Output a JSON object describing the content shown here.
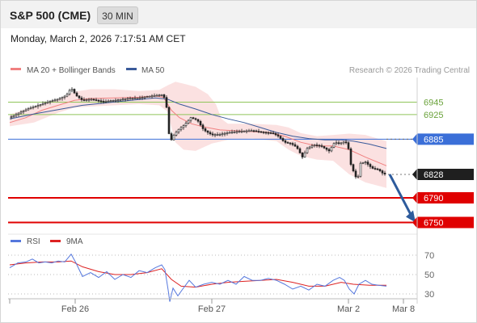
{
  "header": {
    "title": "S&P 500 (CME)",
    "interval": "30 MIN"
  },
  "datetime": "Monday, March 2, 2026 7:17:51 AM CET",
  "copyright": "Research © 2026 Trading Central",
  "colors": {
    "ma20": "#f08080",
    "ma50": "#3a5a9a",
    "bollinger": "#fadcdc",
    "candle": "#222222",
    "green_level": "#8fc55a",
    "blue_level": "#3b6fd8",
    "red_level": "#e00000",
    "dark_level": "#1f1f1f",
    "rsi": "#5577dd",
    "rsi_ma": "#dd2222",
    "arrow": "#2d5b9c"
  },
  "chart_data": [
    {
      "type": "candlestick",
      "legend": [
        {
          "name": "MA 20 + Bollinger Bands",
          "color": "#f08080"
        },
        {
          "name": "MA 50",
          "color": "#3a5a9a"
        }
      ],
      "ylim": [
        6735,
        6985
      ],
      "x_ticks": [
        "Feb 26",
        "Feb 27",
        "Mar 2",
        "Mar 8"
      ],
      "levels": [
        {
          "value": 6945,
          "label": "6945",
          "style": "green"
        },
        {
          "value": 6925,
          "label": "6925",
          "style": "green"
        },
        {
          "value": 6885,
          "label": "6885",
          "style": "blue"
        },
        {
          "value": 6828,
          "label": "6828",
          "style": "dark"
        },
        {
          "value": 6790,
          "label": "6790",
          "style": "red"
        },
        {
          "value": 6750,
          "label": "6750",
          "style": "red"
        }
      ],
      "price_path": [
        [
          0,
          6920
        ],
        [
          12,
          6928
        ],
        [
          24,
          6935
        ],
        [
          36,
          6940
        ],
        [
          48,
          6946
        ],
        [
          60,
          6950
        ],
        [
          70,
          6956
        ],
        [
          76,
          6968
        ],
        [
          82,
          6956
        ],
        [
          90,
          6948
        ],
        [
          100,
          6950
        ],
        [
          115,
          6946
        ],
        [
          130,
          6948
        ],
        [
          145,
          6951
        ],
        [
          160,
          6952
        ],
        [
          175,
          6955
        ],
        [
          188,
          6957
        ],
        [
          193,
          6950
        ],
        [
          196,
          6910
        ],
        [
          198,
          6878
        ],
        [
          202,
          6890
        ],
        [
          208,
          6900
        ],
        [
          216,
          6908
        ],
        [
          224,
          6920
        ],
        [
          232,
          6916
        ],
        [
          240,
          6900
        ],
        [
          250,
          6892
        ],
        [
          260,
          6893
        ],
        [
          272,
          6896
        ],
        [
          285,
          6898
        ],
        [
          300,
          6899
        ],
        [
          315,
          6896
        ],
        [
          325,
          6895
        ],
        [
          332,
          6890
        ],
        [
          340,
          6880
        ],
        [
          348,
          6878
        ],
        [
          355,
          6872
        ],
        [
          362,
          6856
        ],
        [
          368,
          6870
        ],
        [
          376,
          6876
        ],
        [
          385,
          6874
        ],
        [
          395,
          6866
        ],
        [
          402,
          6880
        ],
        [
          408,
          6878
        ],
        [
          414,
          6881
        ],
        [
          418,
          6878
        ],
        [
          422,
          6844
        ],
        [
          426,
          6830
        ],
        [
          430,
          6818
        ],
        [
          434,
          6846
        ],
        [
          440,
          6848
        ],
        [
          448,
          6838
        ],
        [
          456,
          6836
        ],
        [
          462,
          6829
        ],
        [
          466,
          6828
        ]
      ],
      "ma20": [
        [
          0,
          6912
        ],
        [
          20,
          6920
        ],
        [
          40,
          6932
        ],
        [
          60,
          6940
        ],
        [
          80,
          6948
        ],
        [
          100,
          6951
        ],
        [
          130,
          6952
        ],
        [
          160,
          6953
        ],
        [
          180,
          6955
        ],
        [
          190,
          6953
        ],
        [
          200,
          6932
        ],
        [
          210,
          6920
        ],
        [
          225,
          6910
        ],
        [
          240,
          6905
        ],
        [
          260,
          6900
        ],
        [
          290,
          6898
        ],
        [
          320,
          6896
        ],
        [
          340,
          6890
        ],
        [
          360,
          6880
        ],
        [
          380,
          6874
        ],
        [
          400,
          6874
        ],
        [
          420,
          6868
        ],
        [
          440,
          6856
        ],
        [
          466,
          6842
        ]
      ],
      "ma50": [
        [
          0,
          6918
        ],
        [
          30,
          6926
        ],
        [
          60,
          6933
        ],
        [
          90,
          6940
        ],
        [
          120,
          6944
        ],
        [
          150,
          6948
        ],
        [
          180,
          6952
        ],
        [
          195,
          6950
        ],
        [
          210,
          6942
        ],
        [
          230,
          6934
        ],
        [
          250,
          6925
        ],
        [
          270,
          6918
        ],
        [
          290,
          6912
        ],
        [
          310,
          6904
        ],
        [
          330,
          6896
        ],
        [
          350,
          6890
        ],
        [
          370,
          6886
        ],
        [
          390,
          6884
        ],
        [
          410,
          6884
        ],
        [
          425,
          6882
        ],
        [
          445,
          6877
        ],
        [
          466,
          6870
        ]
      ],
      "bb_upper": [
        [
          0,
          6925
        ],
        [
          30,
          6938
        ],
        [
          60,
          6950
        ],
        [
          80,
          6962
        ],
        [
          100,
          6966
        ],
        [
          130,
          6966
        ],
        [
          160,
          6963
        ],
        [
          185,
          6965
        ],
        [
          195,
          6972
        ],
        [
          205,
          6978
        ],
        [
          215,
          6975
        ],
        [
          230,
          6970
        ],
        [
          245,
          6958
        ],
        [
          255,
          6942
        ],
        [
          262,
          6918
        ],
        [
          270,
          6910
        ],
        [
          300,
          6910
        ],
        [
          330,
          6908
        ],
        [
          345,
          6904
        ],
        [
          360,
          6895
        ],
        [
          380,
          6890
        ],
        [
          400,
          6892
        ],
        [
          420,
          6894
        ],
        [
          440,
          6892
        ],
        [
          466,
          6882
        ]
      ],
      "bb_lower": [
        [
          0,
          6906
        ],
        [
          30,
          6912
        ],
        [
          60,
          6928
        ],
        [
          80,
          6936
        ],
        [
          100,
          6938
        ],
        [
          130,
          6940
        ],
        [
          160,
          6942
        ],
        [
          185,
          6940
        ],
        [
          195,
          6930
        ],
        [
          205,
          6880
        ],
        [
          215,
          6868
        ],
        [
          230,
          6866
        ],
        [
          250,
          6878
        ],
        [
          270,
          6884
        ],
        [
          300,
          6886
        ],
        [
          330,
          6882
        ],
        [
          345,
          6868
        ],
        [
          360,
          6858
        ],
        [
          380,
          6852
        ],
        [
          400,
          6850
        ],
        [
          420,
          6828
        ],
        [
          440,
          6815
        ],
        [
          466,
          6806
        ]
      ],
      "forecast": {
        "from": 6828,
        "to": 6750
      }
    },
    {
      "type": "line",
      "legend": [
        {
          "name": "RSI",
          "color": "#5577dd"
        },
        {
          "name": "9MA",
          "color": "#dd2222"
        }
      ],
      "ylim": [
        20,
        85
      ],
      "y_ticks": [
        70,
        50,
        30
      ],
      "rsi": [
        [
          0,
          57
        ],
        [
          10,
          62
        ],
        [
          20,
          63
        ],
        [
          28,
          66
        ],
        [
          36,
          62
        ],
        [
          44,
          63
        ],
        [
          52,
          62
        ],
        [
          60,
          64
        ],
        [
          68,
          63
        ],
        [
          76,
          71
        ],
        [
          82,
          62
        ],
        [
          90,
          48
        ],
        [
          100,
          52
        ],
        [
          110,
          47
        ],
        [
          120,
          53
        ],
        [
          130,
          45
        ],
        [
          140,
          50
        ],
        [
          150,
          47
        ],
        [
          160,
          54
        ],
        [
          170,
          52
        ],
        [
          180,
          57
        ],
        [
          188,
          60
        ],
        [
          192,
          55
        ],
        [
          196,
          34
        ],
        [
          198,
          22
        ],
        [
          202,
          36
        ],
        [
          208,
          28
        ],
        [
          214,
          35
        ],
        [
          222,
          44
        ],
        [
          230,
          37
        ],
        [
          240,
          40
        ],
        [
          250,
          42
        ],
        [
          260,
          40
        ],
        [
          270,
          44
        ],
        [
          280,
          40
        ],
        [
          290,
          48
        ],
        [
          300,
          44
        ],
        [
          310,
          44
        ],
        [
          320,
          46
        ],
        [
          330,
          44
        ],
        [
          340,
          40
        ],
        [
          350,
          35
        ],
        [
          360,
          38
        ],
        [
          370,
          34
        ],
        [
          380,
          40
        ],
        [
          390,
          38
        ],
        [
          400,
          44
        ],
        [
          408,
          47
        ],
        [
          414,
          44
        ],
        [
          420,
          35
        ],
        [
          426,
          30
        ],
        [
          432,
          40
        ],
        [
          440,
          44
        ],
        [
          448,
          40
        ],
        [
          456,
          39
        ],
        [
          466,
          38
        ]
      ],
      "ma9": [
        [
          0,
          60
        ],
        [
          20,
          62
        ],
        [
          40,
          63
        ],
        [
          60,
          63
        ],
        [
          76,
          64
        ],
        [
          90,
          58
        ],
        [
          110,
          53
        ],
        [
          130,
          50
        ],
        [
          150,
          50
        ],
        [
          170,
          52
        ],
        [
          188,
          56
        ],
        [
          200,
          45
        ],
        [
          212,
          38
        ],
        [
          230,
          37
        ],
        [
          250,
          40
        ],
        [
          270,
          42
        ],
        [
          290,
          43
        ],
        [
          310,
          44
        ],
        [
          330,
          45
        ],
        [
          350,
          42
        ],
        [
          370,
          38
        ],
        [
          390,
          38
        ],
        [
          410,
          42
        ],
        [
          425,
          40
        ],
        [
          445,
          39
        ],
        [
          466,
          39
        ]
      ]
    }
  ]
}
